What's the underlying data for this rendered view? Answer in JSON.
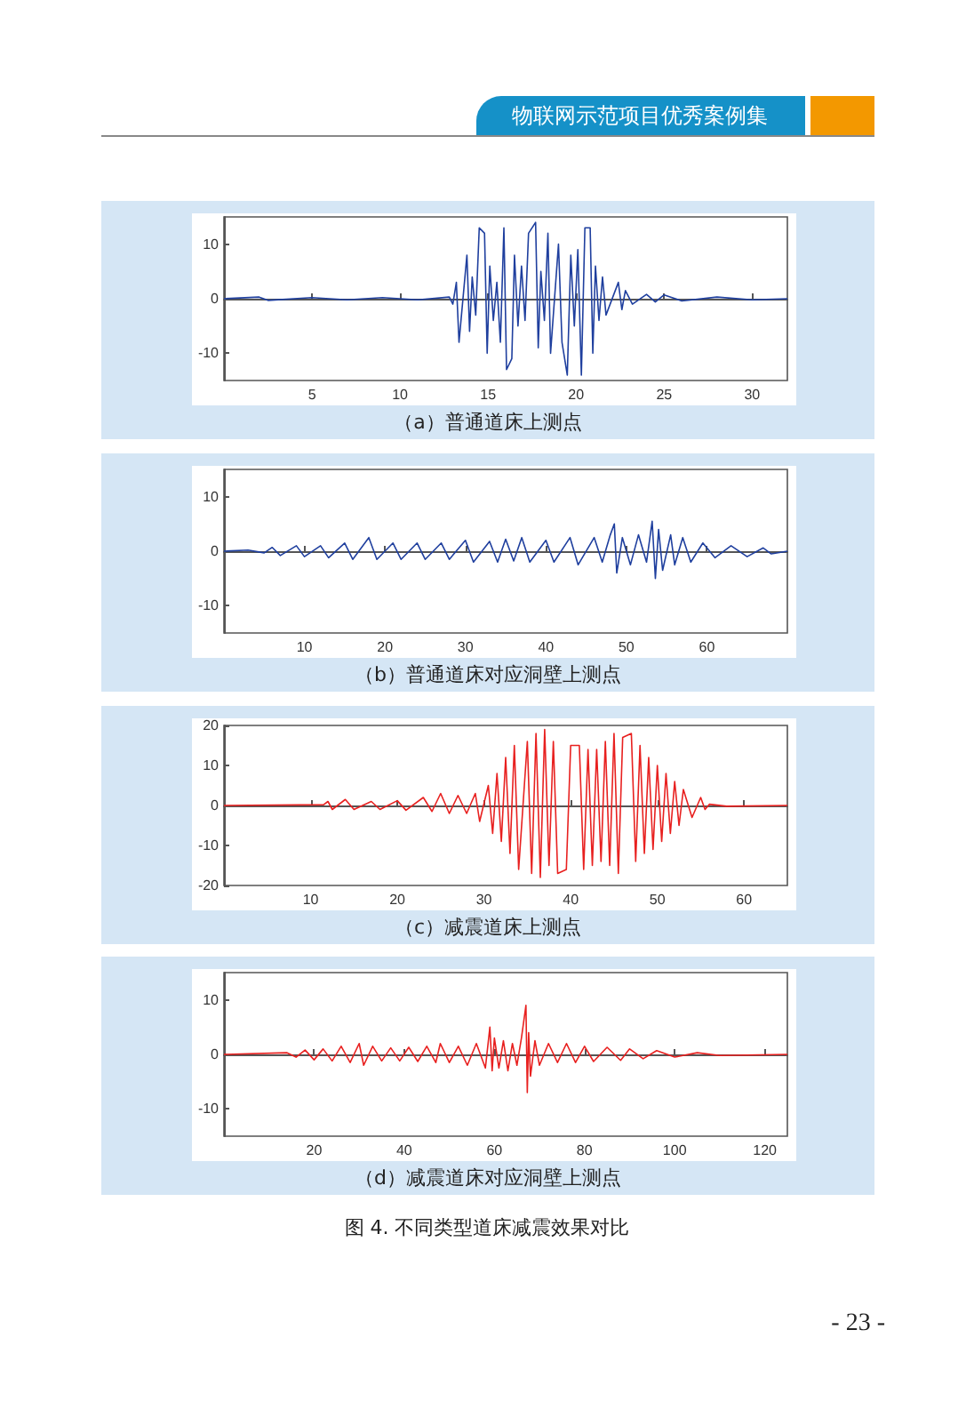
{
  "chart_data": [
    {
      "type": "line",
      "title": "（a）普通道床上测点",
      "annotations": [
        "物联网示范项目优秀案例集"
      ],
      "color": "#1f3f9e",
      "xlim": [
        0,
        32
      ],
      "xticks": [
        5,
        10,
        15,
        20,
        25,
        30
      ],
      "ylim": [
        -15,
        15
      ],
      "yticks": [
        -10,
        0,
        10
      ],
      "x": [
        0,
        2,
        2.5,
        5,
        7,
        9,
        11,
        12.8,
        13.0,
        13.2,
        13.35,
        13.5,
        13.6,
        13.8,
        13.95,
        14.1,
        14.3,
        14.5,
        14.65,
        14.8,
        14.95,
        15.1,
        15.3,
        15.5,
        15.7,
        15.9,
        16.05,
        16.2,
        16.35,
        16.5,
        16.7,
        16.9,
        17.1,
        17.3,
        17.5,
        17.7,
        17.85,
        18.0,
        18.2,
        18.4,
        18.55,
        18.7,
        18.85,
        19.0,
        19.2,
        19.35,
        19.5,
        19.7,
        19.9,
        20.1,
        20.3,
        20.5,
        20.65,
        20.8,
        20.95,
        21.1,
        21.3,
        21.5,
        21.7,
        21.9,
        22.0,
        22.1,
        22.2,
        22.4,
        22.6,
        22.8,
        23.2,
        24,
        24.5,
        25,
        26,
        28,
        30,
        32
      ],
      "values": [
        0,
        0.3,
        -0.3,
        0.2,
        -0.2,
        0.2,
        -0.2,
        0.3,
        -1,
        3,
        -8,
        null,
        null,
        8,
        -6,
        4,
        -3,
        13,
        null,
        12,
        -10,
        6,
        -4,
        3,
        -8,
        13,
        -13,
        null,
        -11,
        8,
        -5,
        6,
        -4,
        12,
        null,
        14,
        -9,
        5,
        -4,
        12,
        -10,
        null,
        null,
        10,
        -8,
        null,
        -14,
        8,
        -5,
        9,
        -14,
        13,
        null,
        13,
        -10,
        6,
        -4,
        4,
        -3,
        null,
        null,
        null,
        null,
        3,
        -2,
        1.5,
        -1,
        0.8,
        -0.6,
        0.7,
        -0.4,
        0.3,
        -0.2,
        0
      ]
    },
    {
      "type": "line",
      "title": "（b）普通道床对应洞壁上测点",
      "color": "#1f3f9e",
      "xlim": [
        0,
        70
      ],
      "xticks": [
        10,
        20,
        30,
        40,
        50,
        60
      ],
      "ylim": [
        -15,
        15
      ],
      "yticks": [
        -10,
        0,
        10
      ],
      "x": [
        0,
        3,
        5,
        6,
        7,
        9,
        10,
        12,
        13,
        15,
        16,
        18,
        19,
        21,
        22,
        24,
        25,
        27,
        28,
        30,
        31,
        33,
        34,
        35,
        36,
        37,
        38,
        40,
        41,
        43,
        44,
        46,
        47,
        48,
        48.5,
        48.8,
        49.5,
        50.5,
        51.5,
        52.5,
        53.2,
        53.6,
        54,
        54.5,
        55.5,
        56,
        57,
        58,
        59.5,
        61,
        63,
        65,
        67,
        68,
        70
      ],
      "values": [
        0,
        0.2,
        -0.3,
        0.7,
        -0.8,
        1,
        -1,
        1,
        -1.2,
        1.5,
        -1.5,
        2.5,
        -1.5,
        1.5,
        -1.5,
        1.5,
        -1.5,
        1.5,
        -1.5,
        2,
        -2,
        1.8,
        -2,
        2.2,
        -1.8,
        2.5,
        -2,
        2,
        -2,
        2.5,
        -2.5,
        2.5,
        -2,
        3,
        5,
        -4,
        2.5,
        -2.5,
        3,
        -2,
        5.5,
        -5,
        4,
        -3.5,
        3,
        -2.5,
        2.5,
        -2,
        1.5,
        -1.2,
        1,
        -1,
        0.6,
        -0.5,
        0
      ]
    },
    {
      "type": "line",
      "title": "（c）减震道床上测点",
      "color": "#e8201f",
      "xlim": [
        0,
        65
      ],
      "xticks": [
        10,
        20,
        30,
        40,
        50,
        60
      ],
      "ylim": [
        -20,
        20
      ],
      "yticks": [
        -20,
        -10,
        0,
        10,
        20
      ],
      "x": [
        0,
        11.5,
        12,
        12.5,
        14,
        15,
        17,
        18,
        20,
        21,
        23,
        24,
        25,
        26,
        27,
        28,
        29,
        29.5,
        30.5,
        31,
        31.5,
        32,
        32.5,
        33,
        33.5,
        34,
        34.2,
        34.5,
        35,
        35.5,
        36,
        36.5,
        37,
        37.5,
        38,
        38.5,
        39,
        39.5,
        40,
        40.5,
        41,
        41.5,
        42,
        42.5,
        43,
        43.5,
        44,
        44.5,
        45,
        45.5,
        46,
        46.5,
        47,
        47.5,
        48,
        48.5,
        49,
        49.5,
        50,
        50.5,
        51,
        51.5,
        52,
        52.5,
        53,
        54,
        55,
        55.5,
        56,
        58,
        65
      ],
      "values": [
        0,
        0.2,
        1,
        -1,
        1.5,
        -1,
        1,
        -1,
        1.2,
        -1.2,
        2,
        -1.5,
        3,
        -2,
        2.5,
        -2,
        3,
        -4,
        5,
        -7,
        8,
        -9,
        12,
        -12,
        15,
        -16,
        null,
        null,
        16,
        -17,
        18,
        -18,
        19,
        -15,
        16,
        -17,
        null,
        -16,
        15,
        null,
        15,
        -16,
        14,
        -15,
        14,
        -14,
        16,
        -15,
        18,
        -17,
        17,
        null,
        18,
        -14,
        15,
        -12,
        12,
        -11,
        10,
        -9,
        8,
        -7,
        6,
        -5,
        4,
        -3,
        2,
        -1,
        0.3,
        -0.2,
        0
      ]
    },
    {
      "type": "line",
      "title": "（d）减震道床对应洞壁上测点",
      "annotations": [
        "图 4. 不同类型道床减震效果对比",
        "- 23 -"
      ],
      "color": "#e8201f",
      "xlim": [
        0,
        125
      ],
      "xticks": [
        20,
        40,
        60,
        80,
        100,
        120
      ],
      "ylim": [
        -15,
        15
      ],
      "yticks": [
        -10,
        0,
        10
      ],
      "x": [
        0,
        14,
        16,
        18,
        20,
        22,
        24,
        26,
        28,
        30,
        31,
        33,
        35,
        37,
        39,
        41,
        43,
        45,
        47,
        48,
        50,
        52,
        54,
        56,
        58,
        59,
        59.5,
        60,
        61,
        62,
        63,
        64,
        65,
        66,
        66.5,
        66.8,
        67,
        67.3,
        67.6,
        68,
        69,
        70,
        72,
        74,
        76,
        78,
        80,
        82,
        85,
        88,
        90,
        93,
        96,
        100,
        105,
        110,
        125
      ],
      "values": [
        0,
        0.3,
        -0.5,
        0.8,
        -1,
        1,
        -1.2,
        1.5,
        -1.5,
        2,
        -2,
        1.5,
        -1.2,
        1.2,
        -1.2,
        1.3,
        -1.3,
        1.5,
        -1.5,
        2,
        -1.5,
        1.5,
        -2,
        2,
        -2.5,
        5,
        -3,
        3,
        -2.5,
        2.5,
        -3,
        2,
        -2,
        3,
        null,
        null,
        9,
        -7,
        4,
        -4,
        2.5,
        -2,
        2,
        -1.5,
        2,
        -1.5,
        1.5,
        -1.3,
        1.3,
        -1.1,
        1,
        -0.8,
        0.7,
        -0.5,
        0.3,
        -0.2,
        0
      ]
    }
  ]
}
